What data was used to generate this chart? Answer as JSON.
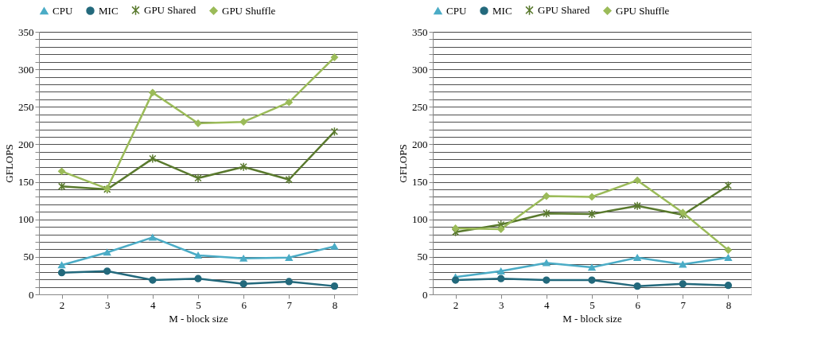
{
  "chart_data": [
    {
      "type": "line",
      "xlabel": "M - block size",
      "ylabel": "GFLOPS",
      "categories": [
        "2",
        "3",
        "4",
        "5",
        "6",
        "7",
        "8"
      ],
      "ylim": [
        0,
        350
      ],
      "yticks": [
        0,
        {
          "value": 10,
          "label": null
        },
        {
          "value": 20,
          "label": null
        },
        {
          "value": 30,
          "label": null
        },
        {
          "value": 40,
          "label": null
        },
        50,
        {
          "value": 60,
          "label": null
        },
        {
          "value": 70,
          "label": null
        },
        {
          "value": 80,
          "label": null
        },
        {
          "value": 90,
          "label": null
        },
        100,
        {
          "value": 110,
          "label": null
        },
        {
          "value": 120,
          "label": null
        },
        {
          "value": 130,
          "label": null
        },
        {
          "value": 140,
          "label": null
        },
        150,
        {
          "value": 160,
          "label": null
        },
        {
          "value": 170,
          "label": null
        },
        {
          "value": 180,
          "label": null
        },
        {
          "value": 190,
          "label": null
        },
        200,
        {
          "value": 210,
          "label": null
        },
        {
          "value": 220,
          "label": null
        },
        {
          "value": 230,
          "label": null
        },
        {
          "value": 240,
          "label": null
        },
        250,
        {
          "value": 260,
          "label": null
        },
        {
          "value": 270,
          "label": null
        },
        {
          "value": 280,
          "label": null
        },
        {
          "value": 290,
          "label": null
        },
        300,
        {
          "value": 310,
          "label": null
        },
        {
          "value": 320,
          "label": null
        },
        {
          "value": 330,
          "label": null
        },
        {
          "value": 340,
          "label": null
        },
        350
      ],
      "grid": "y",
      "legend": "top",
      "series": [
        {
          "name": "CPU",
          "color": "#4bacc6",
          "marker": "triangle",
          "values": [
            39,
            56,
            76,
            52,
            48,
            49,
            64
          ]
        },
        {
          "name": "MIC",
          "color": "#23697c",
          "marker": "circle",
          "values": [
            29,
            31,
            19,
            21,
            14,
            17,
            11
          ]
        },
        {
          "name": "GPU Shared",
          "color": "#5a7a2e",
          "marker": "cross",
          "values": [
            144,
            140,
            181,
            155,
            170,
            153,
            217
          ]
        },
        {
          "name": "GPU Shuffle",
          "color": "#9bbb59",
          "marker": "diamond",
          "values": [
            164,
            141,
            269,
            228,
            230,
            256,
            316
          ]
        }
      ]
    },
    {
      "type": "line",
      "xlabel": "M - block size",
      "ylabel": "GFLOPS",
      "categories": [
        "2",
        "3",
        "4",
        "5",
        "6",
        "7",
        "8"
      ],
      "ylim": [
        0,
        350
      ],
      "yticks": [
        0,
        {
          "value": 10,
          "label": null
        },
        {
          "value": 20,
          "label": null
        },
        {
          "value": 30,
          "label": null
        },
        {
          "value": 40,
          "label": null
        },
        50,
        {
          "value": 60,
          "label": null
        },
        {
          "value": 70,
          "label": null
        },
        {
          "value": 80,
          "label": null
        },
        {
          "value": 90,
          "label": null
        },
        100,
        {
          "value": 110,
          "label": null
        },
        {
          "value": 120,
          "label": null
        },
        {
          "value": 130,
          "label": null
        },
        {
          "value": 140,
          "label": null
        },
        150,
        {
          "value": 160,
          "label": null
        },
        {
          "value": 170,
          "label": null
        },
        {
          "value": 180,
          "label": null
        },
        {
          "value": 190,
          "label": null
        },
        200,
        {
          "value": 210,
          "label": null
        },
        {
          "value": 220,
          "label": null
        },
        {
          "value": 230,
          "label": null
        },
        {
          "value": 240,
          "label": null
        },
        250,
        {
          "value": 260,
          "label": null
        },
        {
          "value": 270,
          "label": null
        },
        {
          "value": 280,
          "label": null
        },
        {
          "value": 290,
          "label": null
        },
        300,
        {
          "value": 310,
          "label": null
        },
        {
          "value": 320,
          "label": null
        },
        {
          "value": 330,
          "label": null
        },
        {
          "value": 340,
          "label": null
        },
        350
      ],
      "grid": "y",
      "legend": "top",
      "series": [
        {
          "name": "CPU",
          "color": "#4bacc6",
          "marker": "triangle",
          "values": [
            23,
            31,
            42,
            36,
            49,
            40,
            49
          ]
        },
        {
          "name": "MIC",
          "color": "#23697c",
          "marker": "circle",
          "values": [
            19,
            21,
            19,
            19,
            11,
            14,
            12
          ]
        },
        {
          "name": "GPU Shared",
          "color": "#5a7a2e",
          "marker": "cross",
          "values": [
            83,
            93,
            108,
            107,
            118,
            106,
            145
          ]
        },
        {
          "name": "GPU Shuffle",
          "color": "#9bbb59",
          "marker": "diamond",
          "values": [
            88,
            87,
            131,
            130,
            152,
            109,
            59
          ]
        }
      ]
    }
  ]
}
